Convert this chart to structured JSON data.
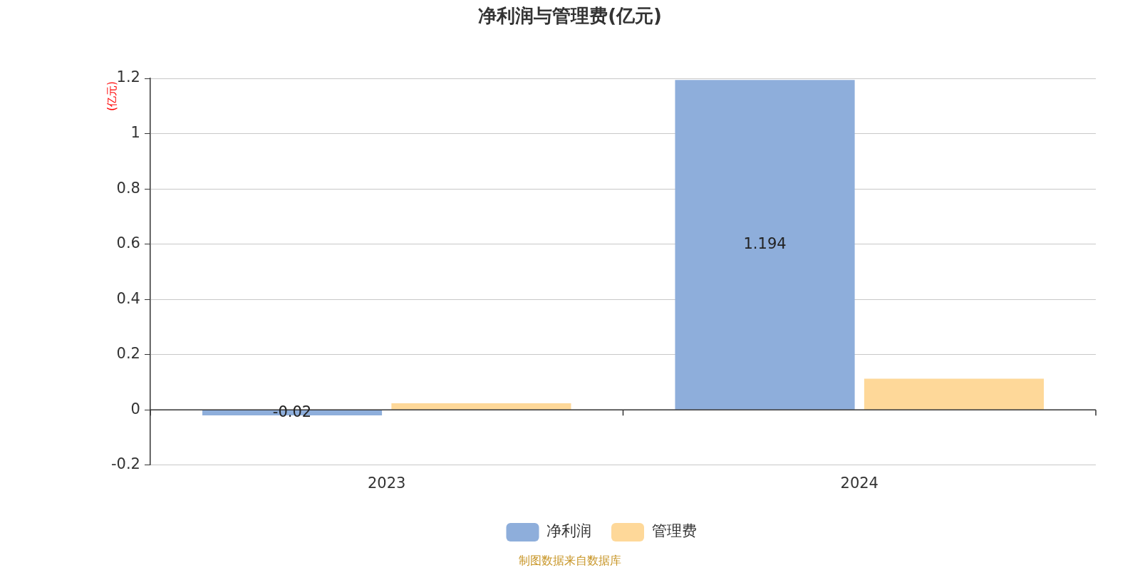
{
  "chart_data": {
    "type": "bar",
    "title": "净利润与管理费(亿元)",
    "ylabel": "(亿元)",
    "categories": [
      "2023",
      "2024"
    ],
    "series": [
      {
        "name": "净利润",
        "color": "#8eaedb",
        "values": [
          -0.02,
          1.194
        ],
        "value_labels": [
          "-0.02",
          "1.194"
        ]
      },
      {
        "name": "管理费",
        "color": "#fed899",
        "values": [
          0.024,
          0.113
        ]
      }
    ],
    "ylim": [
      -0.2,
      1.2
    ],
    "yticks": [
      -0.2,
      0,
      0.2,
      0.4,
      0.6,
      0.8,
      1,
      1.2
    ],
    "grid": "y",
    "legend": "bottom",
    "annotations": [
      "制图数据来自数据库"
    ]
  }
}
